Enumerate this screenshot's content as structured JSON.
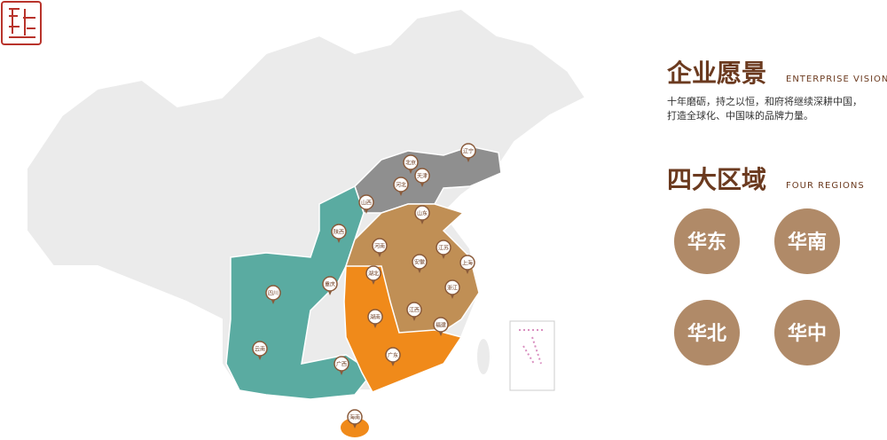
{
  "vision": {
    "title": "企业愿景",
    "subtitle": "ENTERPRISE VISION",
    "lines": [
      "十年磨砺，持之以恒，和府将继续深耕中国，",
      "打造全球化、中国味的品牌力量。"
    ]
  },
  "regions": {
    "title": "四大区域",
    "subtitle": "FOUR REGIONS",
    "buttons": [
      "华东",
      "华南",
      "华北",
      "华中"
    ]
  },
  "map": {
    "pins": [
      "北京",
      "天津",
      "河北",
      "辽宁",
      "山西",
      "山东",
      "陕西",
      "河南",
      "江苏",
      "安徽",
      "上海",
      "湖北",
      "四川",
      "重庆",
      "浙江",
      "湖南",
      "江西",
      "福建",
      "云南",
      "广西",
      "广东",
      "海南"
    ]
  }
}
